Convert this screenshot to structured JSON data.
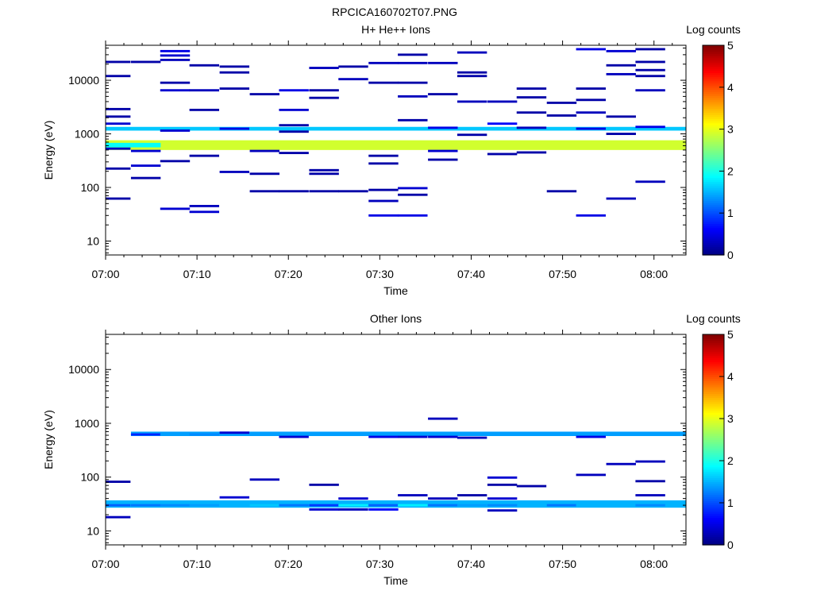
{
  "figure_title": "RPCICA160702T07.PNG",
  "chart_data": [
    {
      "type": "heatmap",
      "title": "H+ He++ Ions",
      "xlabel": "Time",
      "ylabel": "Energy (eV)",
      "x_ticks": [
        "07:00",
        "07:10",
        "07:20",
        "07:30",
        "07:40",
        "07:50",
        "08:00"
      ],
      "x_tick_minutes": [
        0,
        10,
        20,
        30,
        40,
        50,
        60
      ],
      "xlim_minutes": [
        0,
        63.5
      ],
      "y_scale": "log",
      "ylim": [
        5.5,
        45000
      ],
      "y_ticks": [
        "10",
        "100",
        "1000",
        "10000"
      ],
      "y_tick_values": [
        10,
        100,
        1000,
        10000
      ],
      "colorbar": {
        "label": "Log counts",
        "ticks": [
          "0",
          "1",
          "2",
          "3",
          "4",
          "5"
        ],
        "range": [
          0,
          5
        ]
      },
      "time_bins_minutes": [
        1.1,
        4.4,
        7.6,
        10.8,
        14.1,
        17.4,
        20.6,
        23.9,
        27.1,
        30.4,
        33.6,
        36.9,
        40.1,
        43.4,
        46.6,
        49.9,
        53.1,
        56.4,
        59.6,
        62.9
      ],
      "bands": [
        {
          "energy_low": 500,
          "energy_high": 760,
          "log_counts": 2.9,
          "t_from": 1.1,
          "t_to": 62.9
        },
        {
          "energy_low": 1150,
          "energy_high": 1350,
          "log_counts": 1.6,
          "t_from": 1.1,
          "t_to": 62.9
        },
        {
          "energy_low": 560,
          "energy_high": 680,
          "log_counts": 1.9,
          "t_from": 1.1,
          "t_to": 4.4
        }
      ],
      "cells": [
        {
          "t": 1.1,
          "e": 22000,
          "v": 0.2
        },
        {
          "t": 1.1,
          "e": 12000,
          "v": 0.2
        },
        {
          "t": 1.1,
          "e": 2900,
          "v": 0.2
        },
        {
          "t": 1.1,
          "e": 2100,
          "v": 0.2
        },
        {
          "t": 1.1,
          "e": 1550,
          "v": 0.4
        },
        {
          "t": 1.1,
          "e": 530,
          "v": 0.3
        },
        {
          "t": 1.1,
          "e": 225,
          "v": 0.2
        },
        {
          "t": 1.1,
          "e": 62,
          "v": 0.2
        },
        {
          "t": 4.4,
          "e": 22000,
          "v": 0.2
        },
        {
          "t": 4.4,
          "e": 480,
          "v": 0.4
        },
        {
          "t": 4.4,
          "e": 255,
          "v": 0.4
        },
        {
          "t": 4.4,
          "e": 150,
          "v": 0.2
        },
        {
          "t": 7.6,
          "e": 35000,
          "v": 0.5
        },
        {
          "t": 7.6,
          "e": 29000,
          "v": 0.4
        },
        {
          "t": 7.6,
          "e": 24000,
          "v": 0.3
        },
        {
          "t": 7.6,
          "e": 9000,
          "v": 0.2
        },
        {
          "t": 7.6,
          "e": 6500,
          "v": 0.4
        },
        {
          "t": 7.6,
          "e": 1150,
          "v": 0.4
        },
        {
          "t": 7.6,
          "e": 310,
          "v": 0.2
        },
        {
          "t": 7.6,
          "e": 40,
          "v": 0.4
        },
        {
          "t": 10.8,
          "e": 19000,
          "v": 0.2
        },
        {
          "t": 10.8,
          "e": 6500,
          "v": 0.3
        },
        {
          "t": 10.8,
          "e": 2800,
          "v": 0.2
        },
        {
          "t": 10.8,
          "e": 390,
          "v": 0.2
        },
        {
          "t": 10.8,
          "e": 45,
          "v": 0.3
        },
        {
          "t": 10.8,
          "e": 35,
          "v": 0.4
        },
        {
          "t": 14.1,
          "e": 18000,
          "v": 0.2
        },
        {
          "t": 14.1,
          "e": 14000,
          "v": 0.2
        },
        {
          "t": 14.1,
          "e": 7000,
          "v": 0.2
        },
        {
          "t": 14.1,
          "e": 1250,
          "v": 0.5
        },
        {
          "t": 14.1,
          "e": 195,
          "v": 0.3
        },
        {
          "t": 17.4,
          "e": 5500,
          "v": 0.2
        },
        {
          "t": 17.4,
          "e": 480,
          "v": 0.3
        },
        {
          "t": 17.4,
          "e": 180,
          "v": 0.2
        },
        {
          "t": 17.4,
          "e": 85,
          "v": 0.2
        },
        {
          "t": 20.6,
          "e": 6500,
          "v": 0.5
        },
        {
          "t": 20.6,
          "e": 2800,
          "v": 0.4
        },
        {
          "t": 20.6,
          "e": 1450,
          "v": 0.2
        },
        {
          "t": 20.6,
          "e": 1100,
          "v": 0.2
        },
        {
          "t": 20.6,
          "e": 440,
          "v": 0.2
        },
        {
          "t": 20.6,
          "e": 85,
          "v": 0.2
        },
        {
          "t": 23.9,
          "e": 17000,
          "v": 0.3
        },
        {
          "t": 23.9,
          "e": 6500,
          "v": 0.2
        },
        {
          "t": 23.9,
          "e": 4700,
          "v": 0.2
        },
        {
          "t": 23.9,
          "e": 210,
          "v": 0.2
        },
        {
          "t": 23.9,
          "e": 180,
          "v": 0.2
        },
        {
          "t": 23.9,
          "e": 85,
          "v": 0.2
        },
        {
          "t": 27.1,
          "e": 18000,
          "v": 0.2
        },
        {
          "t": 27.1,
          "e": 10500,
          "v": 0.3
        },
        {
          "t": 27.1,
          "e": 85,
          "v": 0.2
        },
        {
          "t": 30.4,
          "e": 21000,
          "v": 0.3
        },
        {
          "t": 30.4,
          "e": 9000,
          "v": 0.2
        },
        {
          "t": 30.4,
          "e": 390,
          "v": 0.2
        },
        {
          "t": 30.4,
          "e": 280,
          "v": 0.2
        },
        {
          "t": 30.4,
          "e": 90,
          "v": 0.2
        },
        {
          "t": 30.4,
          "e": 56,
          "v": 0.3
        },
        {
          "t": 30.4,
          "e": 30,
          "v": 0.5
        },
        {
          "t": 33.6,
          "e": 30000,
          "v": 0.2
        },
        {
          "t": 33.6,
          "e": 21000,
          "v": 0.3
        },
        {
          "t": 33.6,
          "e": 9000,
          "v": 0.2
        },
        {
          "t": 33.6,
          "e": 5000,
          "v": 0.3
        },
        {
          "t": 33.6,
          "e": 1800,
          "v": 0.2
        },
        {
          "t": 33.6,
          "e": 97,
          "v": 0.4
        },
        {
          "t": 33.6,
          "e": 73,
          "v": 0.2
        },
        {
          "t": 33.6,
          "e": 30,
          "v": 0.5
        },
        {
          "t": 36.9,
          "e": 21000,
          "v": 0.3
        },
        {
          "t": 36.9,
          "e": 5500,
          "v": 0.2
        },
        {
          "t": 36.9,
          "e": 1300,
          "v": 0.5
        },
        {
          "t": 36.9,
          "e": 480,
          "v": 0.4
        },
        {
          "t": 36.9,
          "e": 330,
          "v": 0.2
        },
        {
          "t": 40.1,
          "e": 33000,
          "v": 0.3
        },
        {
          "t": 40.1,
          "e": 14000,
          "v": 0.2
        },
        {
          "t": 40.1,
          "e": 12000,
          "v": 0.2
        },
        {
          "t": 40.1,
          "e": 4000,
          "v": 0.3
        },
        {
          "t": 40.1,
          "e": 960,
          "v": 0.2
        },
        {
          "t": 43.4,
          "e": 4000,
          "v": 0.3
        },
        {
          "t": 43.4,
          "e": 1550,
          "v": 0.6
        },
        {
          "t": 43.4,
          "e": 420,
          "v": 0.2
        },
        {
          "t": 46.6,
          "e": 7000,
          "v": 0.2
        },
        {
          "t": 46.6,
          "e": 4800,
          "v": 0.2
        },
        {
          "t": 46.6,
          "e": 2500,
          "v": 0.2
        },
        {
          "t": 46.6,
          "e": 1300,
          "v": 0.3
        },
        {
          "t": 46.6,
          "e": 450,
          "v": 0.2
        },
        {
          "t": 49.9,
          "e": 3800,
          "v": 0.2
        },
        {
          "t": 49.9,
          "e": 2200,
          "v": 0.2
        },
        {
          "t": 49.9,
          "e": 85,
          "v": 0.2
        },
        {
          "t": 53.1,
          "e": 38000,
          "v": 0.5
        },
        {
          "t": 53.1,
          "e": 7000,
          "v": 0.2
        },
        {
          "t": 53.1,
          "e": 4300,
          "v": 0.2
        },
        {
          "t": 53.1,
          "e": 2500,
          "v": 0.3
        },
        {
          "t": 53.1,
          "e": 1250,
          "v": 0.5
        },
        {
          "t": 53.1,
          "e": 30,
          "v": 0.5
        },
        {
          "t": 56.4,
          "e": 35000,
          "v": 0.4
        },
        {
          "t": 56.4,
          "e": 19000,
          "v": 0.2
        },
        {
          "t": 56.4,
          "e": 13000,
          "v": 0.3
        },
        {
          "t": 56.4,
          "e": 2100,
          "v": 0.2
        },
        {
          "t": 56.4,
          "e": 1000,
          "v": 0.2
        },
        {
          "t": 56.4,
          "e": 62,
          "v": 0.3
        },
        {
          "t": 59.6,
          "e": 38000,
          "v": 0.2
        },
        {
          "t": 59.6,
          "e": 22000,
          "v": 0.2
        },
        {
          "t": 59.6,
          "e": 15500,
          "v": 0.2
        },
        {
          "t": 59.6,
          "e": 12000,
          "v": 0.2
        },
        {
          "t": 59.6,
          "e": 6500,
          "v": 0.3
        },
        {
          "t": 59.6,
          "e": 1350,
          "v": 0.5
        },
        {
          "t": 59.6,
          "e": 128,
          "v": 0.3
        }
      ]
    },
    {
      "type": "heatmap",
      "title": "Other Ions",
      "xlabel": "Time",
      "ylabel": "Energy (eV)",
      "x_ticks": [
        "07:00",
        "07:10",
        "07:20",
        "07:30",
        "07:40",
        "07:50",
        "08:00"
      ],
      "x_tick_minutes": [
        0,
        10,
        20,
        30,
        40,
        50,
        60
      ],
      "xlim_minutes": [
        0,
        63.5
      ],
      "y_scale": "log",
      "ylim": [
        5.5,
        45000
      ],
      "y_ticks": [
        "10",
        "100",
        "1000",
        "10000"
      ],
      "y_tick_values": [
        10,
        100,
        1000,
        10000
      ],
      "colorbar": {
        "label": "Log counts",
        "ticks": [
          "0",
          "1",
          "2",
          "3",
          "4",
          "5"
        ],
        "range": [
          0,
          5
        ]
      },
      "bands": [
        {
          "energy_low": 580,
          "energy_high": 700,
          "log_counts": 1.4,
          "t_from": 4.4,
          "t_to": 62.9
        },
        {
          "energy_low": 27,
          "energy_high": 37,
          "log_counts": 1.5,
          "t_from": 1.1,
          "t_to": 62.9
        }
      ],
      "cells": [
        {
          "t": 1.1,
          "e": 82,
          "v": 0.2
        },
        {
          "t": 1.1,
          "e": 18,
          "v": 0.3
        },
        {
          "t": 1.1,
          "e": 30,
          "v": 1.1
        },
        {
          "t": 4.4,
          "e": 620,
          "v": 0.8
        },
        {
          "t": 4.4,
          "e": 30,
          "v": 1.2
        },
        {
          "t": 7.6,
          "e": 620,
          "v": 1.4
        },
        {
          "t": 7.6,
          "e": 30,
          "v": 1.3
        },
        {
          "t": 10.8,
          "e": 620,
          "v": 1.3
        },
        {
          "t": 10.8,
          "e": 30,
          "v": 1.4
        },
        {
          "t": 14.1,
          "e": 670,
          "v": 0.4
        },
        {
          "t": 14.1,
          "e": 42,
          "v": 0.4
        },
        {
          "t": 17.4,
          "e": 90,
          "v": 0.3
        },
        {
          "t": 17.4,
          "e": 30,
          "v": 1.6
        },
        {
          "t": 20.6,
          "e": 560,
          "v": 0.4
        },
        {
          "t": 20.6,
          "e": 30,
          "v": 1.2
        },
        {
          "t": 23.9,
          "e": 72,
          "v": 0.2
        },
        {
          "t": 23.9,
          "e": 25,
          "v": 0.4
        },
        {
          "t": 23.9,
          "e": 30,
          "v": 0.9
        },
        {
          "t": 27.1,
          "e": 40,
          "v": 0.4
        },
        {
          "t": 27.1,
          "e": 25,
          "v": 0.3
        },
        {
          "t": 27.1,
          "e": 30,
          "v": 1.8
        },
        {
          "t": 30.4,
          "e": 560,
          "v": 0.5
        },
        {
          "t": 30.4,
          "e": 25,
          "v": 0.6
        },
        {
          "t": 30.4,
          "e": 30,
          "v": 1.1
        },
        {
          "t": 33.6,
          "e": 560,
          "v": 0.4
        },
        {
          "t": 33.6,
          "e": 46,
          "v": 0.3
        },
        {
          "t": 33.6,
          "e": 30,
          "v": 1.8
        },
        {
          "t": 36.9,
          "e": 1220,
          "v": 0.3
        },
        {
          "t": 36.9,
          "e": 560,
          "v": 0.4
        },
        {
          "t": 36.9,
          "e": 40,
          "v": 0.3
        },
        {
          "t": 36.9,
          "e": 30,
          "v": 1.2
        },
        {
          "t": 40.1,
          "e": 540,
          "v": 0.3
        },
        {
          "t": 40.1,
          "e": 46,
          "v": 0.2
        },
        {
          "t": 40.1,
          "e": 30,
          "v": 1.4
        },
        {
          "t": 43.4,
          "e": 98,
          "v": 0.4
        },
        {
          "t": 43.4,
          "e": 72,
          "v": 0.2
        },
        {
          "t": 43.4,
          "e": 40,
          "v": 0.4
        },
        {
          "t": 43.4,
          "e": 24,
          "v": 0.3
        },
        {
          "t": 43.4,
          "e": 30,
          "v": 1.3
        },
        {
          "t": 46.6,
          "e": 68,
          "v": 0.2
        },
        {
          "t": 49.9,
          "e": 30,
          "v": 1.2
        },
        {
          "t": 53.1,
          "e": 560,
          "v": 0.5
        },
        {
          "t": 53.1,
          "e": 110,
          "v": 0.3
        },
        {
          "t": 53.1,
          "e": 30,
          "v": 1.5
        },
        {
          "t": 56.4,
          "e": 175,
          "v": 0.3
        },
        {
          "t": 59.6,
          "e": 195,
          "v": 0.3
        },
        {
          "t": 59.6,
          "e": 84,
          "v": 0.2
        },
        {
          "t": 59.6,
          "e": 46,
          "v": 0.3
        },
        {
          "t": 59.6,
          "e": 30,
          "v": 1.3
        }
      ]
    }
  ]
}
